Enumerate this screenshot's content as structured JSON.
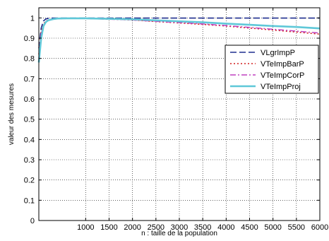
{
  "chart_data": {
    "type": "line",
    "xlabel": "n : taille de la population",
    "ylabel": "valeur des mesures",
    "xlim": [
      0,
      6000
    ],
    "ylim": [
      0,
      1.05
    ],
    "x_ticks": [
      1000,
      1500,
      2000,
      2500,
      3000,
      3500,
      4000,
      4500,
      5000,
      5500,
      6000
    ],
    "x_tick_labels": [
      "1000",
      "1500",
      "2000",
      "2500",
      "3000",
      "3500",
      "4000",
      "4500",
      "5000",
      "5500",
      "6000"
    ],
    "y_ticks": [
      0,
      0.1,
      0.2,
      0.3,
      0.4,
      0.5,
      0.6,
      0.7,
      0.8,
      0.9,
      1
    ],
    "y_tick_labels": [
      "0",
      "0.1",
      "0.2",
      "0.3",
      "0.4",
      "0.5",
      "0.6",
      "0.7",
      "0.8",
      "0.9",
      "1"
    ],
    "grid": true,
    "legend_position": "top-right",
    "series": [
      {
        "name": "VLgrImpP",
        "color": "#1f2f8f",
        "dash": "dashed",
        "x": [
          0,
          50,
          100,
          150,
          200,
          300,
          400,
          600,
          1000,
          2000,
          3000,
          4000,
          5000,
          6000
        ],
        "values": [
          0.85,
          0.95,
          0.985,
          0.995,
          0.998,
          0.999,
          0.999,
          0.999,
          0.999,
          0.999,
          0.999,
          0.999,
          0.999,
          0.999
        ]
      },
      {
        "name": "VTeImpBarP",
        "color": "#d21f1f",
        "dash": "dotted",
        "x": [
          0,
          50,
          100,
          150,
          200,
          300,
          400,
          600,
          1000,
          2000,
          2500,
          3000,
          3500,
          4000,
          4500,
          5000,
          5500,
          6000
        ],
        "values": [
          0.82,
          0.93,
          0.97,
          0.985,
          0.99,
          0.995,
          0.997,
          0.998,
          0.998,
          0.99,
          0.982,
          0.975,
          0.968,
          0.96,
          0.95,
          0.94,
          0.93,
          0.92
        ]
      },
      {
        "name": "VTeImpCorP",
        "color": "#c040c0",
        "dash": "dashdot",
        "x": [
          0,
          50,
          100,
          150,
          200,
          300,
          400,
          600,
          1000,
          2000,
          2500,
          3000,
          3500,
          4000,
          4500,
          5000,
          5500,
          6000
        ],
        "values": [
          0.8,
          0.92,
          0.965,
          0.98,
          0.988,
          0.994,
          0.996,
          0.997,
          0.997,
          0.99,
          0.983,
          0.977,
          0.97,
          0.962,
          0.953,
          0.944,
          0.935,
          0.925
        ]
      },
      {
        "name": "VTeImpProj",
        "color": "#5fc8d8",
        "dash": "solid",
        "x": [
          0,
          50,
          100,
          150,
          200,
          300,
          400,
          600,
          1000,
          2000,
          2500,
          3000,
          3500,
          4000,
          4500,
          5000,
          5500,
          6000
        ],
        "values": [
          0.78,
          0.9,
          0.96,
          0.98,
          0.988,
          0.994,
          0.997,
          0.998,
          0.998,
          0.993,
          0.988,
          0.983,
          0.978,
          0.972,
          0.966,
          0.96,
          0.955,
          0.948
        ]
      }
    ]
  }
}
